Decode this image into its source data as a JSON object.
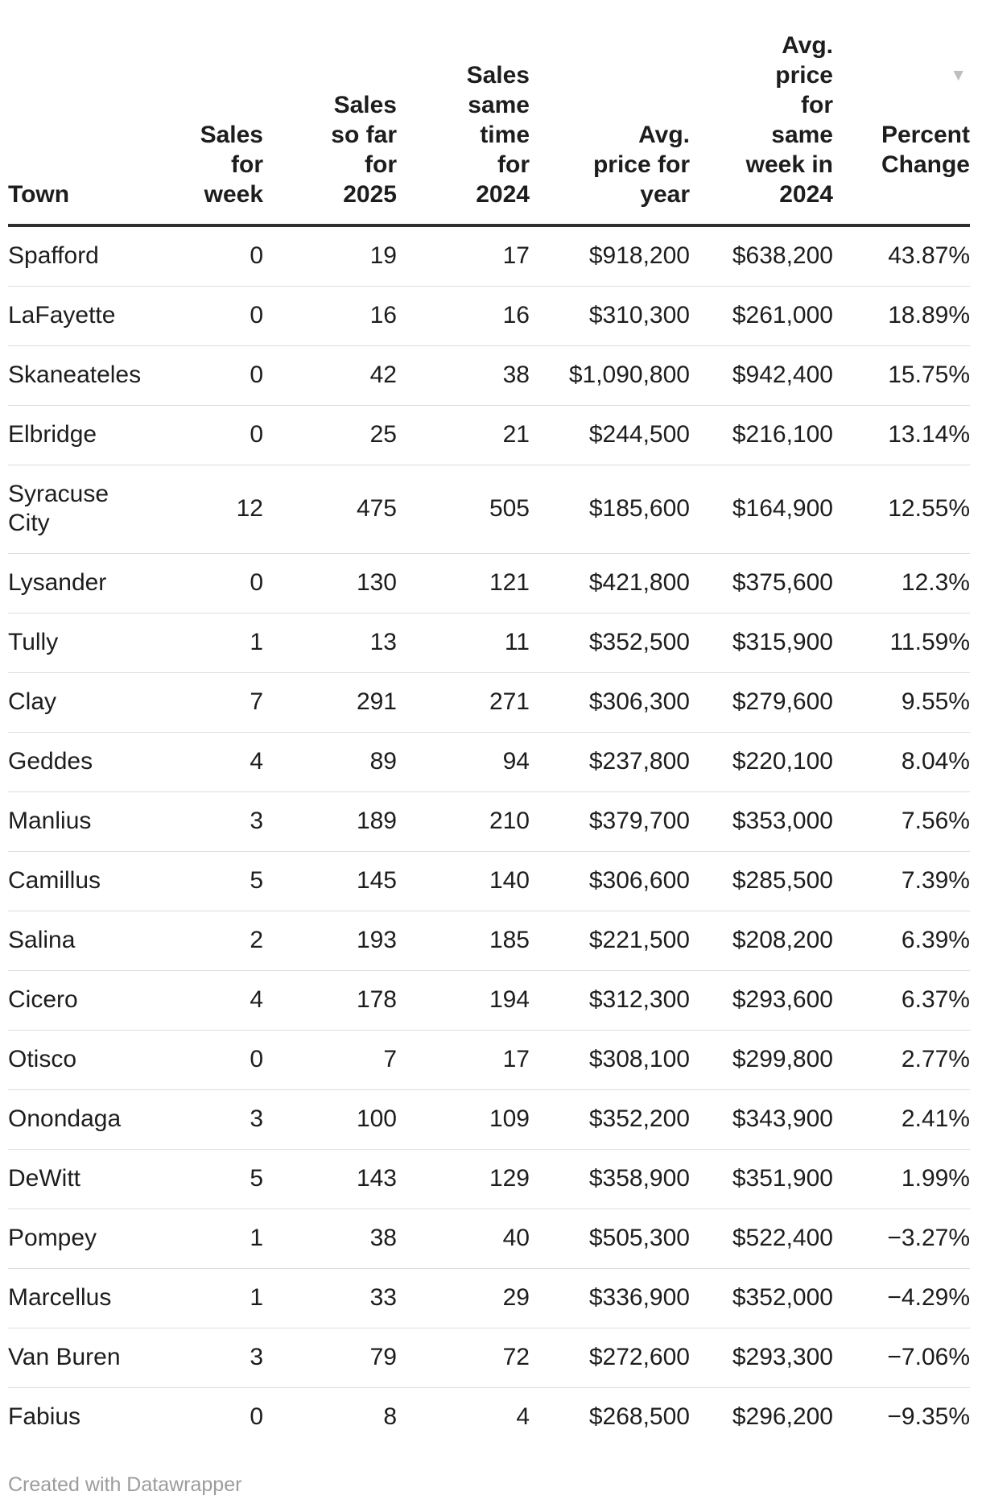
{
  "chart_data": {
    "type": "table",
    "columns": [
      {
        "key": "town",
        "label": "Town",
        "align": "left"
      },
      {
        "key": "sales-week",
        "label": "Sales\nfor\nweek",
        "align": "right"
      },
      {
        "key": "sales-2025",
        "label": "Sales\nso far\nfor\n2025",
        "align": "right"
      },
      {
        "key": "sales-2024",
        "label": "Sales\nsame\ntime\nfor\n2024",
        "align": "right"
      },
      {
        "key": "avg-price-year",
        "label": "Avg.\nprice for\nyear",
        "align": "right"
      },
      {
        "key": "avg-price-2024",
        "label": "Avg.\nprice\nfor\nsame\nweek in\n2024",
        "align": "right"
      },
      {
        "key": "pct-change",
        "label": "Percent\nChange",
        "align": "right"
      }
    ],
    "sort": {
      "column": "pct-change",
      "direction": "descending",
      "indicator": "▼"
    },
    "rows": [
      [
        "Spafford",
        "0",
        "19",
        "17",
        "$918,200",
        "$638,200",
        "43.87%"
      ],
      [
        "LaFayette",
        "0",
        "16",
        "16",
        "$310,300",
        "$261,000",
        "18.89%"
      ],
      [
        "Skaneateles",
        "0",
        "42",
        "38",
        "$1,090,800",
        "$942,400",
        "15.75%"
      ],
      [
        "Elbridge",
        "0",
        "25",
        "21",
        "$244,500",
        "$216,100",
        "13.14%"
      ],
      [
        "Syracuse\nCity",
        "12",
        "475",
        "505",
        "$185,600",
        "$164,900",
        "12.55%"
      ],
      [
        "Lysander",
        "0",
        "130",
        "121",
        "$421,800",
        "$375,600",
        "12.3%"
      ],
      [
        "Tully",
        "1",
        "13",
        "11",
        "$352,500",
        "$315,900",
        "11.59%"
      ],
      [
        "Clay",
        "7",
        "291",
        "271",
        "$306,300",
        "$279,600",
        "9.55%"
      ],
      [
        "Geddes",
        "4",
        "89",
        "94",
        "$237,800",
        "$220,100",
        "8.04%"
      ],
      [
        "Manlius",
        "3",
        "189",
        "210",
        "$379,700",
        "$353,000",
        "7.56%"
      ],
      [
        "Camillus",
        "5",
        "145",
        "140",
        "$306,600",
        "$285,500",
        "7.39%"
      ],
      [
        "Salina",
        "2",
        "193",
        "185",
        "$221,500",
        "$208,200",
        "6.39%"
      ],
      [
        "Cicero",
        "4",
        "178",
        "194",
        "$312,300",
        "$293,600",
        "6.37%"
      ],
      [
        "Otisco",
        "0",
        "7",
        "17",
        "$308,100",
        "$299,800",
        "2.77%"
      ],
      [
        "Onondaga",
        "3",
        "100",
        "109",
        "$352,200",
        "$343,900",
        "2.41%"
      ],
      [
        "DeWitt",
        "5",
        "143",
        "129",
        "$358,900",
        "$351,900",
        "1.99%"
      ],
      [
        "Pompey",
        "1",
        "38",
        "40",
        "$505,300",
        "$522,400",
        "−3.27%"
      ],
      [
        "Marcellus",
        "1",
        "33",
        "29",
        "$336,900",
        "$352,000",
        "−4.29%"
      ],
      [
        "Van Buren",
        "3",
        "79",
        "72",
        "$272,600",
        "$293,300",
        "−7.06%"
      ],
      [
        "Fabius",
        "0",
        "8",
        "4",
        "$268,500",
        "$296,200",
        "−9.35%"
      ]
    ]
  },
  "footer": {
    "credit": "Created with Datawrapper"
  },
  "colors": {
    "text": "#1d1d1d",
    "header_rule": "#2e2e2e",
    "row_rule": "#dddddd",
    "sort_arrow": "#bfbfbf",
    "credit_text": "#9c9c9c",
    "background": "#ffffff"
  }
}
